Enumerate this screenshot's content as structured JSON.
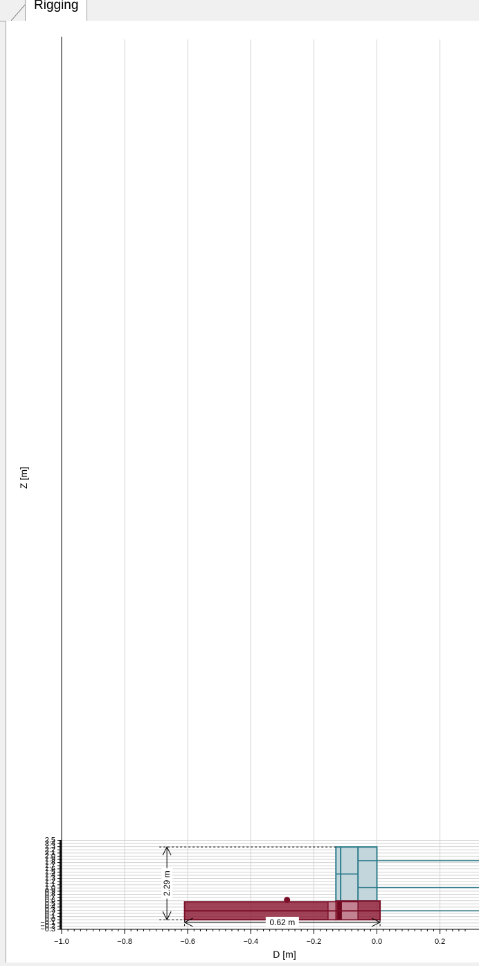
{
  "tab": {
    "label": "Rigging"
  },
  "chart_data": {
    "type": "diagram",
    "xlabel": "D [m]",
    "ylabel": "Z [m]",
    "xlim": [
      -1.0,
      0.3
    ],
    "ylim": [
      -0.3,
      2.5
    ],
    "x_ticks": [
      "−1.0",
      "−0.8",
      "−0.6",
      "−0.4",
      "−0.2",
      "0.0",
      "0.2"
    ],
    "y_ticks": [
      "2.5",
      "2.4",
      "2.3",
      "2.2",
      "2.1",
      "2.0",
      "1.9",
      "1.8",
      "1.7",
      "1.6",
      "1.5",
      "1.4",
      "1.3",
      "1.2",
      "1.1",
      "1.0",
      "0.9",
      "0.8",
      "0.7",
      "0.6",
      "0.5",
      "0.4",
      "0.3",
      "0.2",
      "0.1",
      "0.0",
      "−0.1",
      "−0.2",
      "−0.3"
    ],
    "grid": true,
    "colors": {
      "hull_fill": "#8b1a33",
      "hull_stroke": "#7a0f28",
      "rig_fill": "#c3d6dc",
      "rig_stroke": "#2e7d8c",
      "dim": "#000000"
    },
    "shapes": {
      "rig_outer": [
        -0.13,
        0.0,
        0.59,
        2.29
      ],
      "rig_dividers_x": [
        -0.115,
        -0.06,
        0.0
      ],
      "rig_internal_lines": [
        [
          -0.13,
          -0.06,
          1.44
        ],
        [
          -0.06,
          0.0,
          1.86
        ],
        [
          -0.06,
          0.0,
          1.015
        ]
      ],
      "rig_lines_right": [
        1.86,
        1.015,
        0.28
      ],
      "hull_main": [
        -0.61,
        -0.13,
        0.0,
        0.565
      ],
      "hull_back": [
        -0.13,
        0.01,
        0.0,
        0.59
      ],
      "hull_light_strips": [
        [
          -0.155,
          -0.13
        ],
        [
          -0.113,
          -0.06
        ]
      ],
      "hull_dark_strip": [
        -0.125,
        -0.112
      ],
      "hull_divider_y": 0.28,
      "cog_point": [
        -0.285,
        0.625
      ]
    },
    "dimensions": [
      {
        "label": "2.29 m",
        "value": 2.29,
        "orientation": "vertical"
      },
      {
        "label": "0.62 m",
        "value": 0.62,
        "orientation": "horizontal"
      }
    ]
  }
}
